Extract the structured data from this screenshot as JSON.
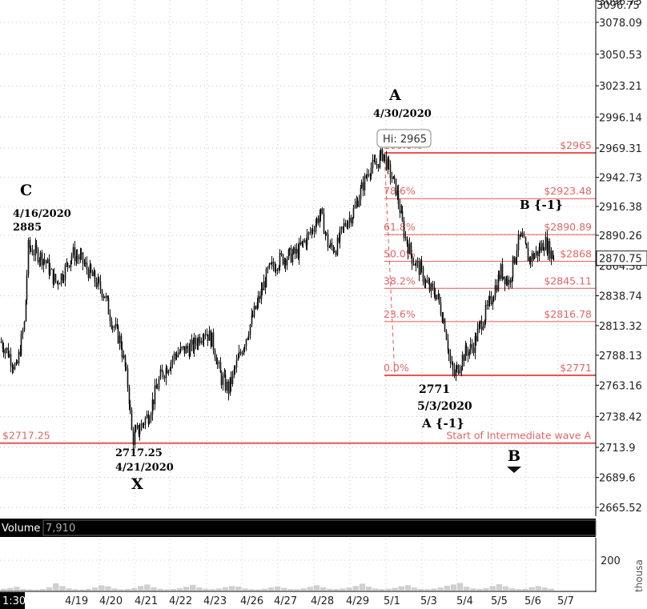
{
  "chart_data": {
    "type": "candlestick",
    "price_axis": {
      "ticks": [
        3096.75,
        3078.09,
        3050.53,
        3023.21,
        2996.14,
        2969.31,
        2942.73,
        2916.38,
        2890.26,
        2864.38,
        2838.74,
        2813.32,
        2788.13,
        2763.16,
        2738.42,
        2713.9,
        2689.6,
        2665.52
      ],
      "ylim": [
        2655,
        3100
      ],
      "last_price": 2870.75
    },
    "time_axis": {
      "ticks": [
        "1:30",
        "4/19",
        "4/20",
        "4/21",
        "4/22",
        "4/23",
        "4/26",
        "4/27",
        "4/28",
        "4/29",
        "5/1",
        "5/3",
        "5/4",
        "5/5",
        "5/6",
        "5/7"
      ]
    },
    "price_path": [
      [
        0,
        2800
      ],
      [
        10,
        2790
      ],
      [
        20,
        2775
      ],
      [
        30,
        2815
      ],
      [
        35,
        2880
      ],
      [
        45,
        2875
      ],
      [
        55,
        2870
      ],
      [
        65,
        2855
      ],
      [
        70,
        2850
      ],
      [
        80,
        2860
      ],
      [
        90,
        2875
      ],
      [
        100,
        2870
      ],
      [
        110,
        2860
      ],
      [
        120,
        2850
      ],
      [
        130,
        2840
      ],
      [
        140,
        2815
      ],
      [
        150,
        2800
      ],
      [
        160,
        2760
      ],
      [
        165,
        2720
      ],
      [
        175,
        2730
      ],
      [
        185,
        2740
      ],
      [
        200,
        2770
      ],
      [
        220,
        2790
      ],
      [
        240,
        2795
      ],
      [
        255,
        2810
      ],
      [
        265,
        2800
      ],
      [
        275,
        2770
      ],
      [
        285,
        2760
      ],
      [
        300,
        2790
      ],
      [
        320,
        2830
      ],
      [
        335,
        2860
      ],
      [
        350,
        2870
      ],
      [
        370,
        2875
      ],
      [
        385,
        2890
      ],
      [
        400,
        2910
      ],
      [
        410,
        2880
      ],
      [
        420,
        2880
      ],
      [
        430,
        2900
      ],
      [
        440,
        2910
      ],
      [
        450,
        2930
      ],
      [
        460,
        2950
      ],
      [
        470,
        2955
      ],
      [
        478,
        2965
      ],
      [
        485,
        2950
      ],
      [
        495,
        2930
      ],
      [
        505,
        2890
      ],
      [
        515,
        2870
      ],
      [
        525,
        2860
      ],
      [
        535,
        2845
      ],
      [
        545,
        2840
      ],
      [
        555,
        2815
      ],
      [
        562,
        2780
      ],
      [
        567,
        2771
      ],
      [
        580,
        2790
      ],
      [
        590,
        2795
      ],
      [
        600,
        2815
      ],
      [
        610,
        2830
      ],
      [
        625,
        2860
      ],
      [
        635,
        2850
      ],
      [
        645,
        2880
      ],
      [
        650,
        2889
      ],
      [
        660,
        2870
      ],
      [
        670,
        2875
      ],
      [
        680,
        2885
      ],
      [
        690,
        2872
      ]
    ],
    "volume": {
      "tick": 200,
      "bars": [
        12,
        18,
        25,
        10,
        8,
        6,
        10,
        22,
        48,
        30,
        15,
        9,
        7,
        11,
        20,
        35,
        28,
        14,
        8,
        10,
        16,
        30,
        40,
        22,
        12,
        8,
        10,
        15,
        25,
        38,
        20,
        12,
        9,
        14,
        22,
        30,
        26,
        14,
        9,
        8,
        12,
        20,
        28,
        18,
        10,
        9,
        15,
        24,
        35,
        22,
        12,
        10,
        14,
        20,
        30,
        45,
        26,
        14,
        10,
        12,
        18,
        28,
        36,
        20,
        11,
        9,
        13,
        20,
        32,
        40,
        50,
        25,
        14,
        11,
        16,
        30,
        42,
        28,
        15,
        10,
        12,
        22,
        30,
        20,
        12
      ]
    },
    "fib_levels": [
      {
        "pct": "100.0%",
        "price": 2965,
        "label": "$2965"
      },
      {
        "pct": "78.6%",
        "price": 2923.48,
        "label": "$2923.48"
      },
      {
        "pct": "61.8%",
        "price": 2890.89,
        "label": "$2890.89"
      },
      {
        "pct": "50.0%",
        "price": 2868,
        "label": "$2868"
      },
      {
        "pct": "38.2%",
        "price": 2845.11,
        "label": "$2845.11"
      },
      {
        "pct": "23.6%",
        "price": 2816.78,
        "label": "$2816.78"
      },
      {
        "pct": "0.0%",
        "price": 2771,
        "label": "$2771"
      }
    ],
    "reference_line": {
      "price": 2717.25,
      "left_label": "$2717.25",
      "right_label": "Start of Intermediate wave A"
    },
    "hi_bubble": "Hi: 2965",
    "volume_label": "Volume",
    "volume_value": "7,910",
    "right_edge_text": "thousa",
    "annotations": [
      {
        "id": "C",
        "text": "C",
        "size": 19
      },
      {
        "id": "c-date",
        "text": "4/16/2020",
        "size": 13
      },
      {
        "id": "c-price",
        "text": "2885",
        "size": 13
      },
      {
        "id": "A",
        "text": "A",
        "size": 19
      },
      {
        "id": "a-date",
        "text": "4/30/2020",
        "size": 13
      },
      {
        "id": "x-price",
        "text": "2717.25",
        "size": 13
      },
      {
        "id": "x-date",
        "text": "4/21/2020",
        "size": 13
      },
      {
        "id": "X",
        "text": "X",
        "size": 19
      },
      {
        "id": "a1-price",
        "text": "2771",
        "size": 14
      },
      {
        "id": "a1-date",
        "text": "5/3/2020",
        "size": 14
      },
      {
        "id": "a1-label",
        "text": "A {-1}",
        "size": 15
      },
      {
        "id": "b1-label",
        "text": "B {-1}",
        "size": 15
      },
      {
        "id": "B",
        "text": "B",
        "size": 19
      }
    ]
  }
}
